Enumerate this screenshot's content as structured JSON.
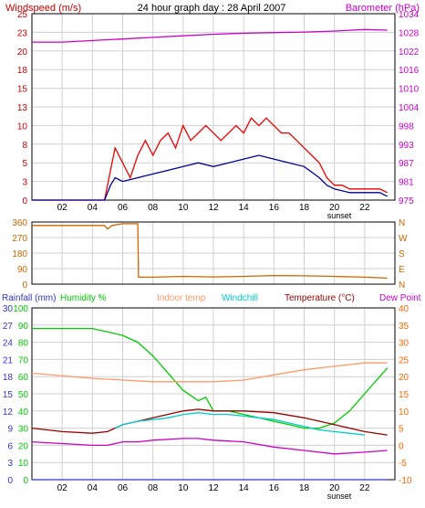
{
  "chart_data": [
    {
      "type": "line",
      "title": "24 hour graph day : 28 April 2007",
      "left_axis_label": "Windspeed (m/s)",
      "right_axis_label": "Barometer (hPa)",
      "sunset_label": "sunset",
      "left_ticks": [
        "0",
        "3",
        "5",
        "8",
        "10",
        "13",
        "15",
        "18",
        "20",
        "23",
        "25"
      ],
      "right_ticks": [
        "975",
        "981",
        "987",
        "993",
        "998",
        "1004",
        "1010",
        "1016",
        "1022",
        "1028",
        "1034"
      ],
      "x_ticks": [
        "02",
        "04",
        "06",
        "08",
        "10",
        "12",
        "14",
        "16",
        "18",
        "20",
        "22"
      ],
      "ylim_left": [
        0,
        25
      ],
      "ylim_right": [
        975,
        1034
      ],
      "xlim": [
        0,
        24
      ],
      "grid": true,
      "colors": {
        "title": "#000000",
        "left": "#cc0000",
        "right": "#cc00cc",
        "gust": "#ee0000",
        "avg": "#000099",
        "baro": "#cc00cc"
      },
      "series": [
        {
          "key": "gust",
          "x": [
            0,
            4.8,
            5.2,
            5.5,
            6,
            6.5,
            7,
            7.5,
            8,
            8.5,
            9,
            9.5,
            10,
            10.5,
            11,
            11.5,
            12,
            12.5,
            13,
            13.5,
            14,
            14.5,
            15,
            15.5,
            16,
            16.5,
            17,
            17.5,
            18,
            18.5,
            19,
            19.5,
            20,
            20.5,
            21,
            21.5,
            22,
            22.5,
            23,
            23.5
          ],
          "y": [
            0,
            0,
            4,
            7,
            5,
            3,
            6,
            8,
            6,
            8,
            9,
            7,
            10,
            8,
            9,
            10,
            9,
            8,
            9,
            10,
            9,
            11,
            10,
            11,
            10,
            9,
            9,
            8,
            7,
            6,
            5,
            3,
            2,
            2,
            1.5,
            1.5,
            1.5,
            1.5,
            1.5,
            1
          ]
        },
        {
          "key": "avg",
          "x": [
            0,
            4.8,
            5.2,
            5.5,
            6,
            7,
            8,
            9,
            10,
            11,
            12,
            13,
            14,
            15,
            16,
            17,
            18,
            19,
            19.5,
            20,
            21,
            22,
            23,
            23.5
          ],
          "y": [
            0,
            0,
            2,
            3,
            2.5,
            3,
            3.5,
            4,
            4.5,
            5,
            4.5,
            5,
            5.5,
            6,
            5.5,
            5,
            4.5,
            3,
            2,
            1.5,
            1,
            1,
            1,
            0.5
          ]
        },
        {
          "key": "baro",
          "x": [
            0,
            2,
            4,
            6,
            8,
            10,
            12,
            14,
            16,
            18,
            20,
            22,
            23.5
          ],
          "y": [
            1025,
            1025,
            1025.5,
            1026,
            1026.5,
            1027,
            1027.5,
            1027.8,
            1028,
            1028.2,
            1028.5,
            1029,
            1028.8
          ]
        }
      ]
    },
    {
      "type": "line",
      "title": "",
      "left_ticks": [
        "0",
        "90",
        "180",
        "270",
        "360"
      ],
      "right_ticks": [
        "N",
        "E",
        "S",
        "W",
        "N"
      ],
      "ylim": [
        0,
        360
      ],
      "grid": true,
      "colors": {
        "direction": "#cc6600"
      },
      "series": [
        {
          "key": "direction",
          "x": [
            0,
            4.8,
            5.0,
            5.3,
            6,
            7.0,
            7.05,
            8,
            10,
            12,
            14,
            16,
            18,
            20,
            22,
            23.5
          ],
          "y": [
            340,
            340,
            320,
            340,
            350,
            350,
            40,
            40,
            45,
            42,
            45,
            50,
            48,
            45,
            40,
            35
          ]
        }
      ]
    },
    {
      "type": "line",
      "title": "",
      "legend": [
        "Rainfall (mm)",
        "Humidity %",
        "Indoor temp",
        "Windchill",
        "Temperature (°C)",
        "Dew Point"
      ],
      "rain_ticks": [
        "0",
        "3",
        "6",
        "9",
        "12",
        "15",
        "18",
        "21",
        "24",
        "27",
        "30"
      ],
      "humidity_ticks": [
        "0",
        "10",
        "20",
        "30",
        "40",
        "50",
        "60",
        "70",
        "80",
        "90",
        "100"
      ],
      "temp_ticks": [
        "-10",
        "-5",
        "0",
        "5",
        "10",
        "15",
        "20",
        "25",
        "30",
        "35",
        "40"
      ],
      "ylim_temp": [
        -10,
        40
      ],
      "ylim_humidity": [
        0,
        100
      ],
      "grid": true,
      "colors": {
        "rain": "#3333cc",
        "humidity": "#00cc00",
        "indoor": "#ff9966",
        "windchill": "#00cccc",
        "temp": "#990000",
        "dew": "#cc00cc",
        "temp_axis": "#ff6600"
      },
      "series": [
        {
          "key": "humidity",
          "x": [
            0,
            2,
            4,
            5,
            6,
            7,
            8,
            9,
            10,
            11,
            11.5,
            12,
            13,
            14,
            15,
            16,
            17,
            18,
            19,
            20,
            21,
            22,
            23,
            23.5
          ],
          "y": [
            88,
            88,
            88,
            86,
            84,
            80,
            72,
            62,
            52,
            46,
            48,
            40,
            40,
            38,
            36,
            34,
            32,
            30,
            30,
            33,
            40,
            50,
            60,
            65
          ]
        },
        {
          "key": "indoor",
          "x": [
            0,
            4,
            8,
            12,
            14,
            16,
            18,
            20,
            22,
            23.5
          ],
          "y": [
            21,
            19.5,
            18.5,
            18.5,
            19,
            20.5,
            22,
            23,
            24,
            24
          ]
        },
        {
          "key": "windchill",
          "x": [
            5.5,
            6,
            7,
            8,
            9,
            10,
            11,
            12,
            13,
            14,
            15,
            16,
            17,
            18,
            19,
            20,
            21,
            22
          ],
          "y": [
            5,
            6,
            7,
            7.5,
            8,
            9,
            9.5,
            9,
            9,
            8.5,
            8,
            7.5,
            6.5,
            5.5,
            4.5,
            4,
            3.5,
            3
          ]
        },
        {
          "key": "temp",
          "x": [
            0,
            2,
            4,
            5,
            6,
            7,
            8,
            10,
            11,
            12,
            14,
            16,
            18,
            20,
            22,
            23.5
          ],
          "y": [
            5,
            4,
            3.5,
            4,
            6,
            7,
            8,
            10,
            10.5,
            10,
            10,
            9.5,
            8,
            6,
            4,
            3
          ]
        },
        {
          "key": "dew",
          "x": [
            0,
            2,
            4,
            5,
            6,
            7,
            8,
            10,
            11,
            12,
            14,
            16,
            18,
            20,
            22,
            23.5
          ],
          "y": [
            1,
            0.5,
            0,
            0,
            1,
            1,
            1.5,
            2,
            2,
            1.5,
            1,
            -0.5,
            -1.5,
            -2.5,
            -2,
            -1.5
          ]
        },
        {
          "key": "rain",
          "x": [
            0,
            23.5
          ],
          "y": [
            0,
            0
          ]
        }
      ]
    }
  ]
}
